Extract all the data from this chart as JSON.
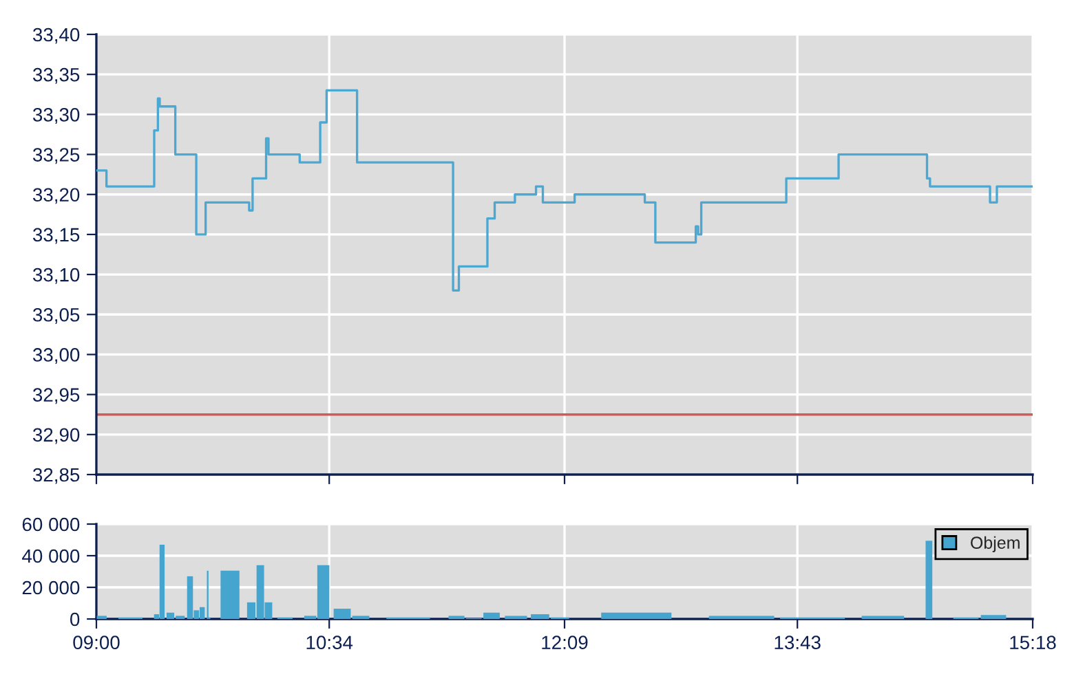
{
  "chart_data": [
    {
      "type": "step",
      "color": "#4aa8d2",
      "x": [
        9.0,
        9.068,
        9.389,
        9.414,
        9.426,
        9.531,
        9.672,
        9.735,
        10.028,
        10.051,
        10.142,
        10.158,
        10.368,
        10.506,
        10.549,
        10.754,
        11.4,
        11.439,
        11.631,
        11.68,
        11.816,
        11.958,
        12.004,
        12.218,
        12.69,
        12.761,
        13.033,
        13.049,
        13.07,
        13.642,
        13.994,
        14.589,
        14.609,
        15.013,
        15.059,
        15.3
      ],
      "values": [
        33.23,
        33.21,
        33.28,
        33.32,
        33.31,
        33.25,
        33.15,
        33.19,
        33.18,
        33.22,
        33.27,
        33.25,
        33.24,
        33.29,
        33.33,
        33.24,
        33.08,
        33.11,
        33.17,
        33.19,
        33.2,
        33.21,
        33.19,
        33.2,
        33.19,
        33.14,
        33.16,
        33.15,
        33.19,
        33.22,
        33.25,
        33.22,
        33.21,
        33.19,
        33.21,
        33.21
      ],
      "xlim": [
        9.0,
        15.3
      ],
      "xticks": [
        {
          "value": 9.0,
          "label": null
        },
        {
          "value": 10.5667,
          "label": null
        },
        {
          "value": 12.15,
          "label": null
        },
        {
          "value": 13.7167,
          "label": null
        },
        {
          "value": 15.3,
          "label": null
        }
      ],
      "ylim": [
        32.85,
        33.4
      ],
      "yticks": [
        {
          "value": 32.85,
          "label": "32,85"
        },
        {
          "value": 32.9,
          "label": "32,90"
        },
        {
          "value": 32.95,
          "label": "32,95"
        },
        {
          "value": 33.0,
          "label": "33,00"
        },
        {
          "value": 33.05,
          "label": "33,05"
        },
        {
          "value": 33.1,
          "label": "33,10"
        },
        {
          "value": 33.15,
          "label": "33,15"
        },
        {
          "value": 33.2,
          "label": "33,20"
        },
        {
          "value": 33.25,
          "label": "33,25"
        },
        {
          "value": 33.3,
          "label": "33,30"
        },
        {
          "value": 33.35,
          "label": "33,35"
        },
        {
          "value": 33.4,
          "label": "33,40"
        }
      ],
      "ref_lines": [
        {
          "axis": "y",
          "value": 32.925,
          "color": "#d05a5a"
        }
      ],
      "tick_labels": "y",
      "grid": true
    },
    {
      "type": "bar",
      "x": [
        9.036,
        9.229,
        9.405,
        9.442,
        9.498,
        9.564,
        9.63,
        9.673,
        9.712,
        9.749,
        9.761,
        9.899,
        10.042,
        10.103,
        10.158,
        10.269,
        10.439,
        10.527,
        10.654,
        10.779,
        11.098,
        11.423,
        11.539,
        11.659,
        11.823,
        11.985,
        12.119,
        12.633,
        13.341,
        13.818,
        14.292,
        14.602,
        14.651,
        14.851,
        15.036
      ],
      "series": [
        {
          "name": "Objem",
          "color": "#45a5cf",
          "values": [
            2000,
            1000,
            3000,
            47000,
            4000,
            2000,
            27000,
            5500,
            7500,
            30500,
            1000,
            30500,
            10500,
            34000,
            10500,
            1000,
            2000,
            34000,
            6500,
            2000,
            1000,
            2000,
            500,
            4000,
            2000,
            3000,
            1000,
            4000,
            2000,
            1000,
            2000,
            49500,
            null,
            1000,
            2500
          ]
        }
      ],
      "xlim": [
        9.0,
        15.3
      ],
      "xticks": [
        {
          "value": 9.0,
          "label": "09:00"
        },
        {
          "value": 10.5667,
          "label": "10:34"
        },
        {
          "value": 12.15,
          "label": "12:09"
        },
        {
          "value": 13.7167,
          "label": "13:43"
        },
        {
          "value": 15.3,
          "label": "15:18"
        }
      ],
      "ylim": [
        0,
        60000
      ],
      "yticks": [
        {
          "value": 0,
          "label": "0"
        },
        {
          "value": 20000,
          "label": "20 000"
        },
        {
          "value": 40000,
          "label": "40 000"
        },
        {
          "value": 60000,
          "label": "60 000"
        }
      ],
      "legend": "top right",
      "grid": true
    }
  ]
}
